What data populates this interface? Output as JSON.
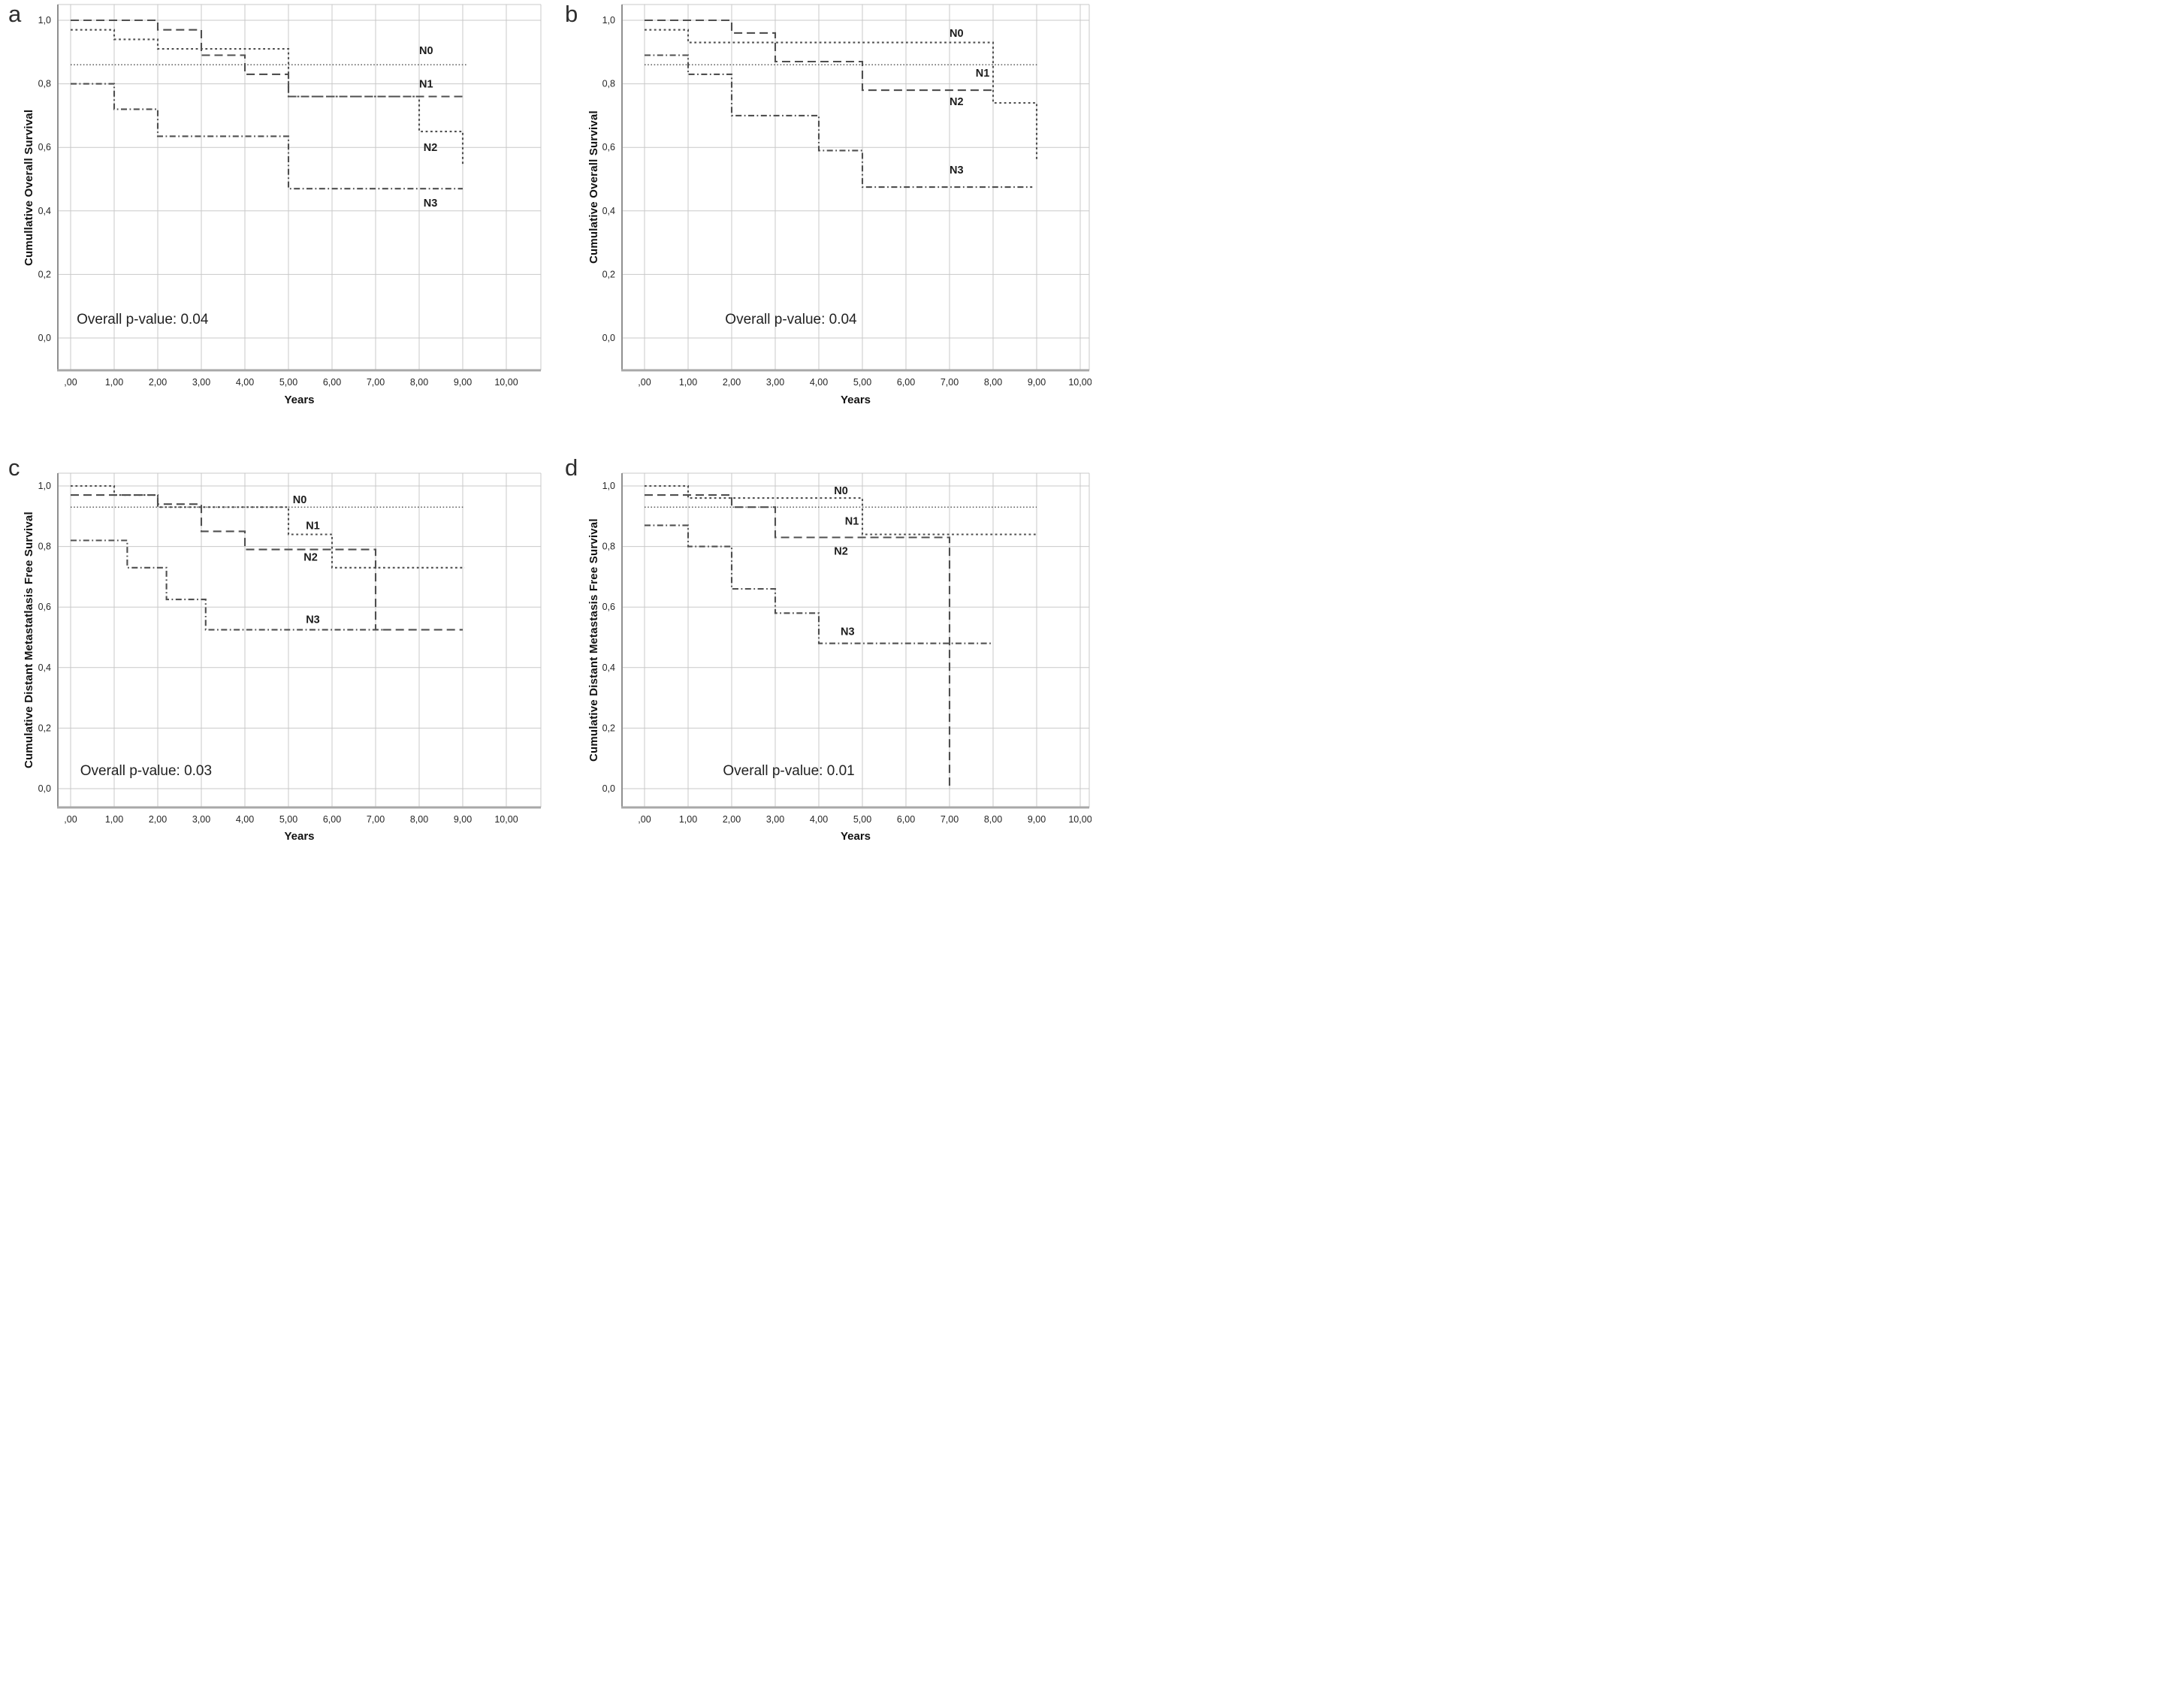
{
  "figure_colors": {
    "curve": "#4f4f4f",
    "grid": "#c9c9c9",
    "axis_left": "#8f8f8f",
    "axis_bottom": "#a8a8a8",
    "tick_text": "#262626",
    "series_label_text": "#1c1c1c"
  },
  "axis": {
    "x_label": "Years",
    "x_ticks": [
      ",00",
      "1,00",
      "2,00",
      "3,00",
      "4,00",
      "5,00",
      "6,00",
      "7,00",
      "8,00",
      "9,00",
      "10,00"
    ],
    "x_values": [
      0,
      1,
      2,
      3,
      4,
      5,
      6,
      7,
      8,
      9,
      10
    ],
    "y_ticks": [
      "1,0",
      "0,8",
      "0,6",
      "0,4",
      "0,2",
      "0,0"
    ],
    "y_values": [
      1.0,
      0.8,
      0.6,
      0.4,
      0.2,
      0.0
    ]
  },
  "chart_data": [
    {
      "id": "a",
      "letter": "a",
      "type": "step",
      "y_axis_label": "Cumullative Overall Survival",
      "x_axis_label": "Years",
      "p_value_label": "Overall p-value: 0.04",
      "p_value_pos": [
        0.14,
        0.055
      ],
      "xlim": [
        0,
        10.6
      ],
      "ylim": [
        0,
        1.08
      ],
      "grid": true,
      "series": [
        {
          "name": "N0",
          "style": "fine-dot",
          "label_pos": [
            8.0,
            0.905
          ],
          "points": [
            [
              0,
              0.86
            ],
            [
              9.1,
              0.86
            ]
          ]
        },
        {
          "name": "N1",
          "style": "long-dash",
          "label_pos": [
            8.0,
            0.8
          ],
          "points": [
            [
              0,
              1.0
            ],
            [
              2,
              1.0
            ],
            [
              2,
              0.97
            ],
            [
              3,
              0.97
            ],
            [
              3,
              0.89
            ],
            [
              4,
              0.89
            ],
            [
              4,
              0.83
            ],
            [
              5,
              0.83
            ],
            [
              5,
              0.76
            ],
            [
              9,
              0.76
            ]
          ]
        },
        {
          "name": "N2",
          "style": "square-dot",
          "label_pos": [
            8.1,
            0.6
          ],
          "points": [
            [
              0,
              0.97
            ],
            [
              1,
              0.97
            ],
            [
              1,
              0.94
            ],
            [
              2,
              0.94
            ],
            [
              2,
              0.91
            ],
            [
              5,
              0.91
            ],
            [
              5,
              0.76
            ],
            [
              8,
              0.76
            ],
            [
              8,
              0.65
            ],
            [
              9,
              0.65
            ],
            [
              9,
              0.54
            ]
          ]
        },
        {
          "name": "N3",
          "style": "dash-dot",
          "label_pos": [
            8.1,
            0.425
          ],
          "points": [
            [
              0,
              0.8
            ],
            [
              1,
              0.8
            ],
            [
              1,
              0.72
            ],
            [
              2,
              0.72
            ],
            [
              2,
              0.635
            ],
            [
              5,
              0.635
            ],
            [
              5,
              0.47
            ],
            [
              9,
              0.47
            ]
          ]
        }
      ]
    },
    {
      "id": "b",
      "letter": "b",
      "type": "step",
      "y_axis_label": "Cumulative Overall Survival",
      "x_axis_label": "Years",
      "p_value_label": "Overall p-value: 0.04",
      "p_value_pos": [
        1.85,
        0.055
      ],
      "xlim": [
        0,
        10.6
      ],
      "ylim": [
        0,
        1.08
      ],
      "grid": true,
      "series": [
        {
          "name": "N0",
          "style": "square-dot",
          "label_pos": [
            7.0,
            0.96
          ],
          "points": [
            [
              0,
              0.97
            ],
            [
              1,
              0.97
            ],
            [
              1,
              0.93
            ],
            [
              8,
              0.93
            ],
            [
              8,
              0.74
            ],
            [
              9,
              0.74
            ],
            [
              9,
              0.56
            ]
          ]
        },
        {
          "name": "N1",
          "style": "fine-dot",
          "label_pos": [
            7.6,
            0.835
          ],
          "points": [
            [
              0,
              0.86
            ],
            [
              9.05,
              0.86
            ]
          ]
        },
        {
          "name": "N2",
          "style": "long-dash",
          "label_pos": [
            7.0,
            0.745
          ],
          "points": [
            [
              0,
              1.0
            ],
            [
              2,
              1.0
            ],
            [
              2,
              0.96
            ],
            [
              3,
              0.96
            ],
            [
              3,
              0.87
            ],
            [
              5,
              0.87
            ],
            [
              5,
              0.78
            ],
            [
              8,
              0.78
            ]
          ]
        },
        {
          "name": "N3",
          "style": "dash-dot",
          "label_pos": [
            7.0,
            0.53
          ],
          "points": [
            [
              0,
              0.89
            ],
            [
              1,
              0.89
            ],
            [
              1,
              0.83
            ],
            [
              2,
              0.83
            ],
            [
              2,
              0.7
            ],
            [
              4,
              0.7
            ],
            [
              4,
              0.59
            ],
            [
              5,
              0.59
            ],
            [
              5,
              0.475
            ],
            [
              8.9,
              0.475
            ]
          ]
        }
      ]
    },
    {
      "id": "c",
      "letter": "c",
      "type": "step",
      "y_axis_label": "Cumulative Distant Metastatlasis Free Survival",
      "x_axis_label": "Years",
      "p_value_label": "Overall p-value: 0.03",
      "p_value_pos": [
        0.22,
        0.055
      ],
      "xlim": [
        0,
        10.6
      ],
      "ylim": [
        0,
        1.08
      ],
      "grid": true,
      "series": [
        {
          "name": "N0",
          "style": "fine-dot",
          "label_pos": [
            5.1,
            0.955
          ],
          "points": [
            [
              0,
              0.93
            ],
            [
              9.05,
              0.93
            ]
          ]
        },
        {
          "name": "N1",
          "style": "square-dot",
          "label_pos": [
            5.4,
            0.87
          ],
          "points": [
            [
              0,
              1.0
            ],
            [
              1,
              1.0
            ],
            [
              1,
              0.97
            ],
            [
              2,
              0.97
            ],
            [
              2,
              0.93
            ],
            [
              5,
              0.93
            ],
            [
              5,
              0.84
            ],
            [
              6,
              0.84
            ],
            [
              6,
              0.73
            ],
            [
              9.05,
              0.73
            ]
          ]
        },
        {
          "name": "N2",
          "style": "long-dash",
          "label_pos": [
            5.35,
            0.765
          ],
          "points": [
            [
              0,
              0.97
            ],
            [
              2,
              0.97
            ],
            [
              2,
              0.94
            ],
            [
              3,
              0.94
            ],
            [
              3,
              0.85
            ],
            [
              4,
              0.85
            ],
            [
              4,
              0.79
            ],
            [
              7,
              0.79
            ],
            [
              7,
              0.525
            ],
            [
              9,
              0.525
            ]
          ]
        },
        {
          "name": "N3",
          "style": "dash-dot",
          "label_pos": [
            5.4,
            0.56
          ],
          "points": [
            [
              0,
              0.82
            ],
            [
              1.3,
              0.82
            ],
            [
              1.3,
              0.73
            ],
            [
              2.2,
              0.73
            ],
            [
              2.2,
              0.625
            ],
            [
              3.1,
              0.625
            ],
            [
              3.1,
              0.525
            ],
            [
              7.2,
              0.525
            ]
          ]
        }
      ]
    },
    {
      "id": "d",
      "letter": "d",
      "type": "step",
      "y_axis_label": "Cumulative Distant Metastasis Free Survival",
      "x_axis_label": "Years",
      "p_value_label": "Overall p-value: 0.01",
      "p_value_pos": [
        1.8,
        0.055
      ],
      "xlim": [
        0,
        10.6
      ],
      "ylim": [
        0,
        1.08
      ],
      "grid": true,
      "series": [
        {
          "name": "N0",
          "style": "square-dot",
          "label_pos": [
            4.35,
            0.985
          ],
          "points": [
            [
              0,
              1.0
            ],
            [
              1,
              1.0
            ],
            [
              1,
              0.96
            ],
            [
              5,
              0.96
            ],
            [
              5,
              0.84
            ],
            [
              9,
              0.84
            ]
          ]
        },
        {
          "name": "N1",
          "style": "fine-dot",
          "label_pos": [
            4.6,
            0.885
          ],
          "points": [
            [
              0,
              0.93
            ],
            [
              9,
              0.93
            ]
          ]
        },
        {
          "name": "N2",
          "style": "long-dash",
          "label_pos": [
            4.35,
            0.785
          ],
          "points": [
            [
              0,
              0.97
            ],
            [
              2,
              0.97
            ],
            [
              2,
              0.93
            ],
            [
              3,
              0.93
            ],
            [
              3,
              0.83
            ],
            [
              7,
              0.83
            ],
            [
              7,
              0.005
            ]
          ]
        },
        {
          "name": "N3",
          "style": "dash-dot",
          "label_pos": [
            4.5,
            0.52
          ],
          "points": [
            [
              0,
              0.87
            ],
            [
              1,
              0.87
            ],
            [
              1,
              0.8
            ],
            [
              2,
              0.8
            ],
            [
              2,
              0.66
            ],
            [
              3,
              0.66
            ],
            [
              3,
              0.58
            ],
            [
              4,
              0.58
            ],
            [
              4,
              0.48
            ],
            [
              8,
              0.48
            ]
          ]
        }
      ]
    }
  ]
}
